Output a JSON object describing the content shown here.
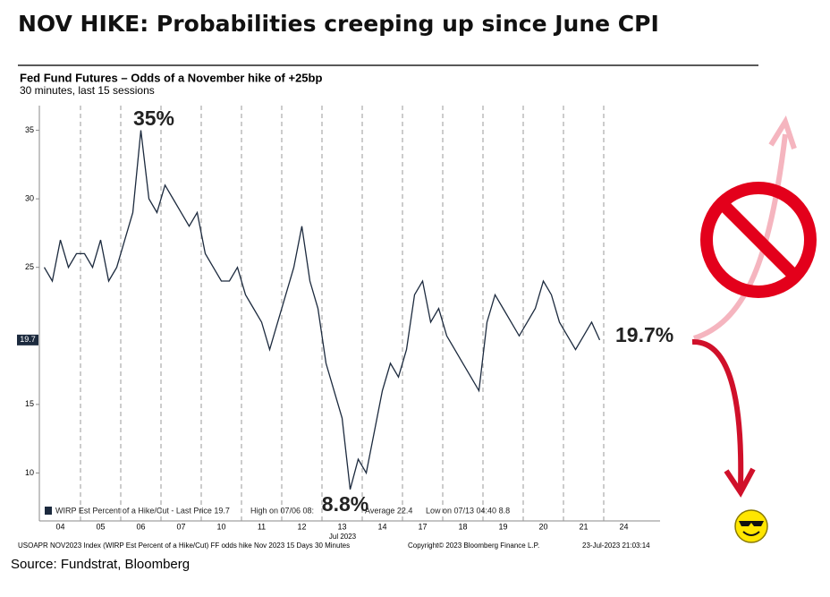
{
  "header": {
    "title": "NOV HIKE: Probabilities creeping up since June CPI"
  },
  "chart_data": {
    "type": "line",
    "title": "Fed Fund Futures – Odds of a November hike of +25bp",
    "subtitle": "30 minutes, last 15 sessions",
    "categories": [
      null,
      null,
      "04",
      null,
      null,
      null,
      null,
      "05",
      null,
      null,
      null,
      null,
      "06",
      null,
      null,
      null,
      null,
      "07",
      null,
      null,
      null,
      null,
      "10",
      null,
      null,
      null,
      null,
      "11",
      null,
      null,
      null,
      null,
      "12",
      null,
      null,
      null,
      null,
      "13",
      null,
      null,
      null,
      null,
      "14",
      null,
      null,
      null,
      null,
      "17",
      null,
      null,
      null,
      null,
      "18",
      null,
      null,
      null,
      null,
      "19",
      null,
      null,
      null,
      null,
      "20",
      null,
      null,
      null,
      null,
      "21",
      null,
      null,
      null,
      null,
      "24",
      null,
      null
    ],
    "x_axis_note": "Jul 2023",
    "series": [
      {
        "name": "WIRP Est Percent of a Hike/Cut - Last Price 19.7",
        "color": "#1c2a3e",
        "values": [
          25,
          24,
          27,
          25,
          26,
          26,
          25,
          27,
          24,
          25,
          27,
          29,
          35,
          30,
          29,
          31,
          30,
          29,
          28,
          29,
          26,
          25,
          24,
          24,
          25,
          23,
          22,
          21,
          19,
          21,
          23,
          25,
          28,
          24,
          22,
          18,
          16,
          14,
          8.8,
          11,
          10,
          13,
          16,
          18,
          17,
          19,
          23,
          24,
          21,
          22,
          20,
          19,
          18,
          17,
          16,
          21,
          23,
          22,
          21,
          20,
          21,
          22,
          24,
          23,
          21,
          20,
          19,
          20,
          21,
          19.7,
          null,
          null,
          null,
          null,
          null
        ]
      }
    ],
    "ylim": [
      6.5,
      36.8
    ],
    "yticks": [
      10,
      15,
      25,
      30,
      35
    ],
    "last_price_tag": 19.7,
    "legend_items": [
      "High on 07/06 08:",
      "Average 22.4",
      "Low on 07/13 04:40 8.8"
    ],
    "annotations": [
      "35%",
      "8.8%",
      "19.7%"
    ],
    "footer": [
      "USOAPR NOV2023 Index (WIRP Est Percent of a Hike/Cut) FF odds hike Nov 2023 15 Days 30 Minutes",
      "Copyright© 2023 Bloomberg Finance L.P.",
      "23-Jul-2023 21:03:14"
    ]
  },
  "source": "Source: Fundstrat, Bloomberg"
}
